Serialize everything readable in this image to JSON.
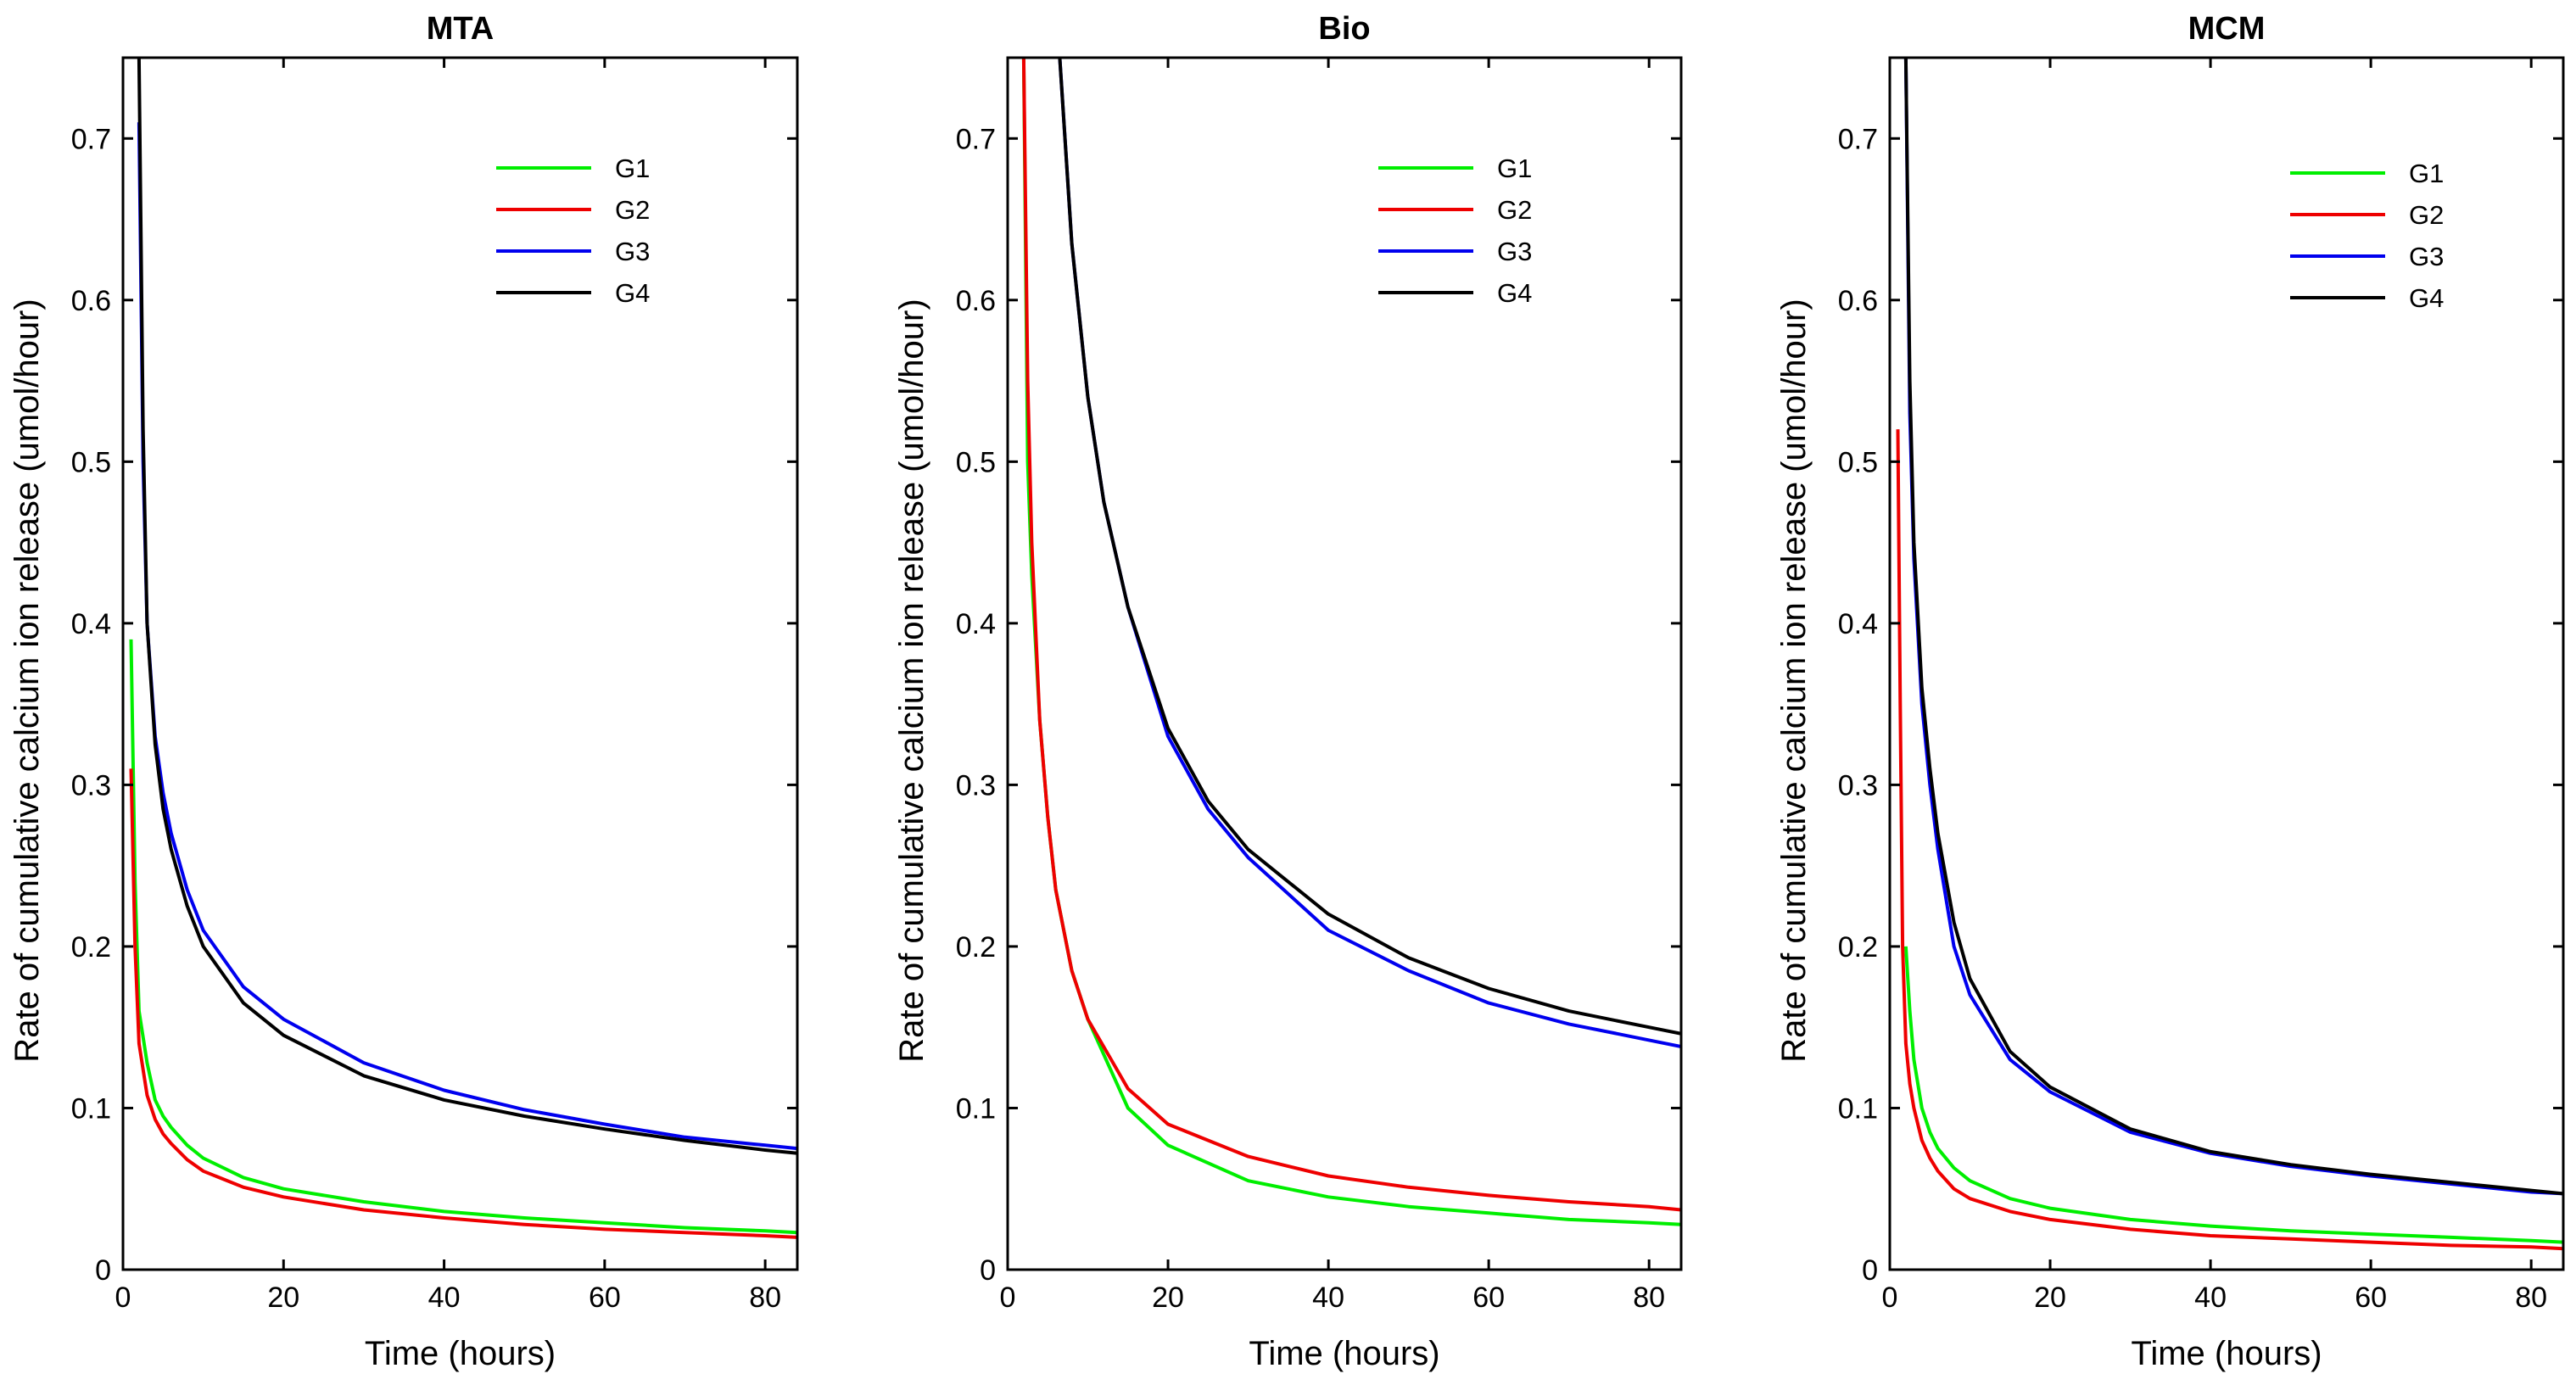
{
  "chart_data": [
    {
      "type": "line",
      "title": "MTA",
      "xlabel": "Time (hours)",
      "ylabel": "Rate of cumulative calcium ion release (umol/hour)",
      "xlim": [
        0,
        84
      ],
      "ylim": [
        0,
        0.75
      ],
      "xticks": [
        "0",
        "20",
        "40",
        "60",
        "80"
      ],
      "yticks": [
        "0",
        "0.1",
        "0.2",
        "0.3",
        "0.4",
        "0.5",
        "0.6",
        "0.7"
      ],
      "legend_position": "top-right",
      "series": [
        {
          "name": "G1",
          "color": "#00ee00",
          "x": [
            1,
            1.5,
            2,
            3,
            4,
            5,
            6,
            8,
            10,
            15,
            20,
            30,
            40,
            50,
            60,
            70,
            80,
            84
          ],
          "y": [
            0.39,
            0.24,
            0.16,
            0.128,
            0.105,
            0.095,
            0.088,
            0.077,
            0.069,
            0.057,
            0.05,
            0.042,
            0.036,
            0.032,
            0.029,
            0.026,
            0.024,
            0.023
          ]
        },
        {
          "name": "G2",
          "color": "#ee0000",
          "x": [
            1,
            1.5,
            2,
            3,
            4,
            5,
            6,
            8,
            10,
            15,
            20,
            30,
            40,
            50,
            60,
            70,
            80,
            84
          ],
          "y": [
            0.31,
            0.2,
            0.14,
            0.108,
            0.093,
            0.084,
            0.078,
            0.068,
            0.061,
            0.051,
            0.045,
            0.037,
            0.032,
            0.028,
            0.025,
            0.023,
            0.021,
            0.02
          ]
        },
        {
          "name": "G3",
          "color": "#0000ee",
          "x": [
            2,
            2.5,
            3,
            4,
            5,
            6,
            8,
            10,
            15,
            20,
            30,
            40,
            50,
            60,
            70,
            80,
            84
          ],
          "y": [
            0.71,
            0.5,
            0.4,
            0.33,
            0.295,
            0.27,
            0.235,
            0.21,
            0.175,
            0.155,
            0.128,
            0.111,
            0.099,
            0.09,
            0.082,
            0.077,
            0.075
          ]
        },
        {
          "name": "G4",
          "color": "#000000",
          "x": [
            2,
            2.5,
            3,
            4,
            5,
            6,
            8,
            10,
            15,
            20,
            30,
            40,
            50,
            60,
            70,
            80,
            84
          ],
          "y": [
            0.75,
            0.52,
            0.4,
            0.325,
            0.285,
            0.26,
            0.225,
            0.2,
            0.165,
            0.145,
            0.12,
            0.105,
            0.095,
            0.087,
            0.08,
            0.074,
            0.072
          ]
        }
      ]
    },
    {
      "type": "line",
      "title": "Bio",
      "xlabel": "Time (hours)",
      "ylabel": "Rate of cumulative calcium ion release (umol/hour)",
      "xlim": [
        0,
        84
      ],
      "ylim": [
        0,
        0.75
      ],
      "xticks": [
        "0",
        "20",
        "40",
        "60",
        "80"
      ],
      "yticks": [
        "0",
        "0.1",
        "0.2",
        "0.3",
        "0.4",
        "0.5",
        "0.6",
        "0.7"
      ],
      "legend_position": "top-right",
      "series": [
        {
          "name": "G1",
          "color": "#00ee00",
          "x": [
            2,
            2.5,
            3,
            4,
            5,
            6,
            8,
            10,
            15,
            20,
            30,
            40,
            50,
            60,
            70,
            80,
            84
          ],
          "y": [
            0.75,
            0.5,
            0.43,
            0.34,
            0.28,
            0.235,
            0.185,
            0.155,
            0.1,
            0.077,
            0.055,
            0.045,
            0.039,
            0.035,
            0.031,
            0.029,
            0.028
          ]
        },
        {
          "name": "G2",
          "color": "#ee0000",
          "x": [
            2,
            2.5,
            3,
            4,
            5,
            6,
            8,
            10,
            15,
            20,
            30,
            40,
            50,
            60,
            70,
            80,
            84
          ],
          "y": [
            0.75,
            0.55,
            0.45,
            0.34,
            0.28,
            0.235,
            0.185,
            0.155,
            0.112,
            0.09,
            0.07,
            0.058,
            0.051,
            0.046,
            0.042,
            0.039,
            0.037
          ]
        },
        {
          "name": "G3",
          "color": "#0000ee",
          "x": [
            6.5,
            8,
            10,
            12,
            15,
            20,
            25,
            30,
            40,
            50,
            60,
            70,
            80,
            84
          ],
          "y": [
            0.75,
            0.635,
            0.54,
            0.475,
            0.41,
            0.33,
            0.285,
            0.255,
            0.21,
            0.185,
            0.165,
            0.152,
            0.142,
            0.138
          ]
        },
        {
          "name": "G4",
          "color": "#000000",
          "x": [
            6.5,
            8,
            10,
            12,
            15,
            20,
            25,
            30,
            40,
            50,
            60,
            70,
            80,
            84
          ],
          "y": [
            0.75,
            0.635,
            0.54,
            0.475,
            0.41,
            0.335,
            0.29,
            0.26,
            0.22,
            0.193,
            0.174,
            0.16,
            0.15,
            0.146
          ]
        }
      ]
    },
    {
      "type": "line",
      "title": "MCM",
      "xlabel": "Time (hours)",
      "ylabel": "Rate of cumulative calcium ion release (umol/hour)",
      "xlim": [
        0,
        84
      ],
      "ylim": [
        0,
        0.75
      ],
      "xticks": [
        "0",
        "20",
        "40",
        "60",
        "80"
      ],
      "yticks": [
        "0",
        "0.1",
        "0.2",
        "0.3",
        "0.4",
        "0.5",
        "0.6",
        "0.7"
      ],
      "legend_position": "top-right",
      "series": [
        {
          "name": "G1",
          "color": "#00ee00",
          "x": [
            2,
            2.5,
            3,
            4,
            5,
            6,
            8,
            10,
            15,
            20,
            30,
            40,
            50,
            60,
            70,
            80,
            84
          ],
          "y": [
            0.2,
            0.16,
            0.13,
            0.1,
            0.085,
            0.075,
            0.063,
            0.055,
            0.044,
            0.038,
            0.031,
            0.027,
            0.024,
            0.022,
            0.02,
            0.018,
            0.017
          ]
        },
        {
          "name": "G2",
          "color": "#ee0000",
          "x": [
            1,
            1.3,
            1.6,
            2,
            2.5,
            3,
            4,
            5,
            6,
            8,
            10,
            15,
            20,
            30,
            40,
            50,
            60,
            70,
            80,
            84
          ],
          "y": [
            0.52,
            0.35,
            0.2,
            0.14,
            0.115,
            0.1,
            0.08,
            0.069,
            0.061,
            0.05,
            0.044,
            0.036,
            0.031,
            0.025,
            0.021,
            0.019,
            0.017,
            0.015,
            0.014,
            0.013
          ]
        },
        {
          "name": "G3",
          "color": "#0000ee",
          "x": [
            2,
            2.5,
            3,
            4,
            5,
            6,
            8,
            10,
            15,
            20,
            30,
            40,
            50,
            60,
            70,
            80,
            84
          ],
          "y": [
            0.75,
            0.53,
            0.44,
            0.35,
            0.3,
            0.26,
            0.2,
            0.17,
            0.13,
            0.11,
            0.085,
            0.072,
            0.064,
            0.058,
            0.053,
            0.048,
            0.047
          ]
        },
        {
          "name": "G4",
          "color": "#000000",
          "x": [
            2,
            2.5,
            3,
            4,
            5,
            6,
            8,
            10,
            15,
            20,
            30,
            40,
            50,
            60,
            70,
            80,
            84
          ],
          "y": [
            0.75,
            0.55,
            0.45,
            0.36,
            0.31,
            0.27,
            0.215,
            0.18,
            0.135,
            0.113,
            0.087,
            0.073,
            0.065,
            0.059,
            0.054,
            0.049,
            0.047
          ]
        }
      ]
    }
  ]
}
